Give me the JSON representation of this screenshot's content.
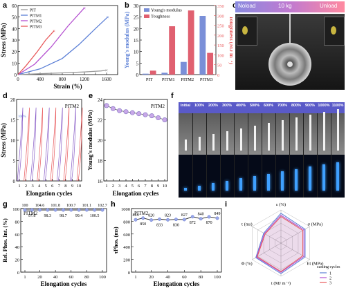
{
  "panel_labels": [
    "a",
    "b",
    "c",
    "d",
    "e",
    "f",
    "g",
    "h",
    "i"
  ],
  "colors": {
    "pt": "#9a9a9a",
    "ptim1": "#5b7fd6",
    "ptim2": "#b44fd0",
    "ptim3": "#e8585a",
    "c_bar_left": "#7a8fd8",
    "c_bar_right": "#e06070",
    "purple": "#8a5fc8"
  },
  "chart_a": {
    "type": "line",
    "xlabel": "Strain (%)",
    "ylabel": "Stress (MPa)",
    "xlim": [
      0,
      1800
    ],
    "ylim": [
      0,
      60
    ],
    "xticks": [
      "0",
      "200",
      "400",
      "600",
      "800",
      "1000",
      "1200",
      "1400",
      "1600",
      "1800"
    ],
    "yticks": [
      "0",
      "10",
      "20",
      "30",
      "40",
      "50",
      "60"
    ],
    "legend": [
      "PIT",
      "PITM1",
      "PITM2",
      "PITM3"
    ],
    "series": [
      {
        "name": "PIT",
        "points": [
          [
            0,
            0
          ],
          [
            400,
            0.8
          ],
          [
            800,
            1.5
          ],
          [
            1200,
            2.3
          ],
          [
            1500,
            3.2
          ],
          [
            1600,
            3.8
          ]
        ]
      },
      {
        "name": "PITM1",
        "points": [
          [
            0,
            0
          ],
          [
            400,
            5
          ],
          [
            800,
            14
          ],
          [
            1100,
            26
          ],
          [
            1400,
            40
          ],
          [
            1620,
            50
          ]
        ]
      },
      {
        "name": "PITM2",
        "points": [
          [
            0,
            0
          ],
          [
            300,
            9
          ],
          [
            600,
            24
          ],
          [
            900,
            42
          ],
          [
            1200,
            58
          ]
        ]
      },
      {
        "name": "PITM3",
        "points": [
          [
            0,
            0
          ],
          [
            150,
            8
          ],
          [
            350,
            20
          ],
          [
            500,
            30
          ],
          [
            650,
            38
          ]
        ]
      }
    ]
  },
  "chart_b": {
    "type": "bar",
    "categories": [
      "PIT",
      "PITM1",
      "PITM2",
      "PITM3"
    ],
    "ylabel_left": "Young's modulus (MPa)",
    "ylabel_right": "Toughness (MJ m⁻³)",
    "ylim_left": [
      0,
      30
    ],
    "ylim_right": [
      0,
      350
    ],
    "yticks_left": [
      "0",
      "5",
      "10",
      "15",
      "20",
      "25",
      "30"
    ],
    "yticks_right": [
      "0",
      "50",
      "100",
      "150",
      "200",
      "250",
      "300",
      "350"
    ],
    "legend": [
      "Young's modulus",
      "Toughness"
    ],
    "series": [
      {
        "name": "Young's modulus",
        "values": [
          0.4,
          0.8,
          5.5,
          25.5
        ]
      },
      {
        "name": "Toughness",
        "values": [
          20,
          245,
          325,
          110
        ]
      }
    ]
  },
  "panel_c": {
    "labels": [
      "Noload",
      "10 kg",
      "Unload"
    ]
  },
  "chart_d": {
    "type": "line",
    "title": "PITM2",
    "xlabel": "Elongation cycles",
    "ylabel": "Stress (MPa)",
    "ylim": [
      0,
      20
    ],
    "xticks": [
      "1",
      "2",
      "3",
      "4",
      "5",
      "6",
      "7",
      "8",
      "9",
      "10"
    ],
    "yticks": [
      "0",
      "5",
      "10",
      "15",
      "20"
    ],
    "inset": "100%",
    "cycles": 10,
    "peak_stress": 18
  },
  "chart_e": {
    "type": "line",
    "title": "PITM2",
    "xlabel": "Elongation cycles",
    "ylabel": "Young's modulus (MPa)",
    "ylim": [
      16,
      24
    ],
    "xticks": [
      "1",
      "2",
      "3",
      "4",
      "5",
      "6",
      "7",
      "8",
      "9",
      "10"
    ],
    "yticks": [
      "16",
      "18",
      "20",
      "22",
      "24"
    ],
    "x": [
      1,
      2,
      3,
      4,
      5,
      6,
      7,
      8,
      9,
      10
    ],
    "values": [
      23.4,
      23.1,
      22.9,
      22.8,
      22.7,
      22.6,
      22.5,
      22.4,
      22.2,
      22.0
    ]
  },
  "panel_f": {
    "labels": [
      "Initial",
      "100%",
      "200%",
      "300%",
      "400%",
      "500%",
      "600%",
      "700%",
      "800%",
      "900%",
      "1000%",
      "1100%"
    ]
  },
  "chart_g": {
    "type": "line",
    "title": "PITM2",
    "xlabel": "Elongation cycles",
    "ylabel": "Rel. Phos. Int. (%)",
    "ylim": [
      0,
      100
    ],
    "xticks": [
      "1",
      "20",
      "40",
      "60",
      "80",
      "100"
    ],
    "yticks": [
      "0",
      "20",
      "40",
      "60",
      "80",
      "100"
    ],
    "x": [
      1,
      10,
      20,
      30,
      40,
      50,
      60,
      70,
      80,
      90,
      100
    ],
    "values": [
      100,
      97.8,
      104.6,
      98.3,
      101.8,
      98.7,
      100.7,
      99.4,
      101.1,
      100.5,
      102.7
    ],
    "labels": [
      "100",
      "97.8",
      "104.6",
      "98.3",
      "101.8",
      "98.7",
      "100.7",
      "99.4",
      "101.1",
      "100.5",
      "102.7"
    ]
  },
  "chart_h": {
    "type": "line",
    "title": "PITM2",
    "xlabel": "Elongation cycles",
    "ylabel": "τPhos. (ms)",
    "ylim": [
      0,
      1000
    ],
    "xticks": [
      "1",
      "20",
      "40",
      "60",
      "80",
      "100"
    ],
    "yticks": [
      "0",
      "200",
      "400",
      "600",
      "800",
      "1000"
    ],
    "x": [
      1,
      10,
      20,
      30,
      40,
      50,
      60,
      70,
      80,
      90,
      100
    ],
    "values": [
      824,
      850,
      820,
      833,
      823,
      830,
      827,
      872,
      840,
      870,
      849
    ],
    "labels": [
      "824",
      "850",
      "820",
      "833",
      "823",
      "830",
      "827",
      "872",
      "840",
      "870",
      "849"
    ]
  },
  "chart_i": {
    "type": "radar",
    "axes": [
      "ε (%)",
      "σ (MPa)",
      "Et (MPa)",
      "t (MJ m⁻³)",
      "Φ (%)",
      "τ (ms)"
    ],
    "axis_ticks": {
      "eps": [
        "700",
        "800",
        "900",
        "1000",
        "1100",
        "1200"
      ],
      "sigma": [
        "20",
        "30",
        "40",
        "50",
        "60",
        "70"
      ],
      "E": [
        "5",
        "10",
        "15",
        "20",
        "25",
        "30"
      ],
      "t": [
        "100",
        "150",
        "200",
        "250",
        "300",
        "350"
      ],
      "phi": [
        "0",
        "20",
        "40",
        "60",
        "80"
      ],
      "tau": [
        "600",
        "700",
        "800",
        "900",
        "1000"
      ]
    },
    "legend_title": "casting cycles",
    "series": [
      {
        "name": "1",
        "values": [
          1150,
          62,
          26,
          330,
          70,
          840
        ]
      },
      {
        "name": "2",
        "values": [
          1120,
          60,
          25,
          320,
          68,
          830
        ]
      },
      {
        "name": "3",
        "values": [
          1100,
          58,
          24,
          315,
          66,
          820
        ]
      }
    ]
  }
}
